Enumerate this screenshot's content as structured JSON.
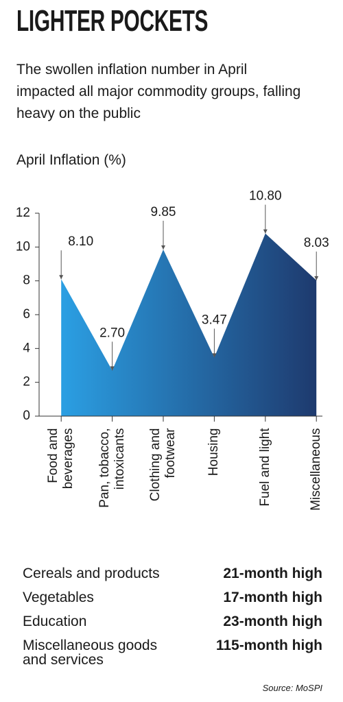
{
  "chart_data": {
    "type": "area",
    "title": "LIGHTER POCKETS",
    "subtitle": "The swollen inflation number in April impacted all major commodity groups, falling heavy on the public",
    "y_label": "April Inflation (%)",
    "categories": [
      "Food and beverages",
      "Pan, tobacco, intoxicants",
      "Clothing and footwear",
      "Housing",
      "Fuel and light",
      "Miscellaneous"
    ],
    "values": [
      8.1,
      2.7,
      9.85,
      3.47,
      10.8,
      8.03
    ],
    "value_labels": [
      "8.10",
      "2.70",
      "9.85",
      "3.47",
      "10.80",
      "8.03"
    ],
    "colors": [
      "#2b9fe3",
      "#1e3a6e"
    ],
    "ylim": [
      0,
      12
    ],
    "yticks": [
      0,
      2,
      4,
      6,
      8,
      10,
      12
    ]
  },
  "highlights": [
    [
      "Cereals and products",
      "21-month high"
    ],
    [
      "Vegetables",
      "17-month high"
    ],
    [
      "Education",
      "23-month high"
    ],
    [
      "Miscellaneous goods and services",
      "115-month high"
    ]
  ],
  "source": "Source: MoSPI"
}
